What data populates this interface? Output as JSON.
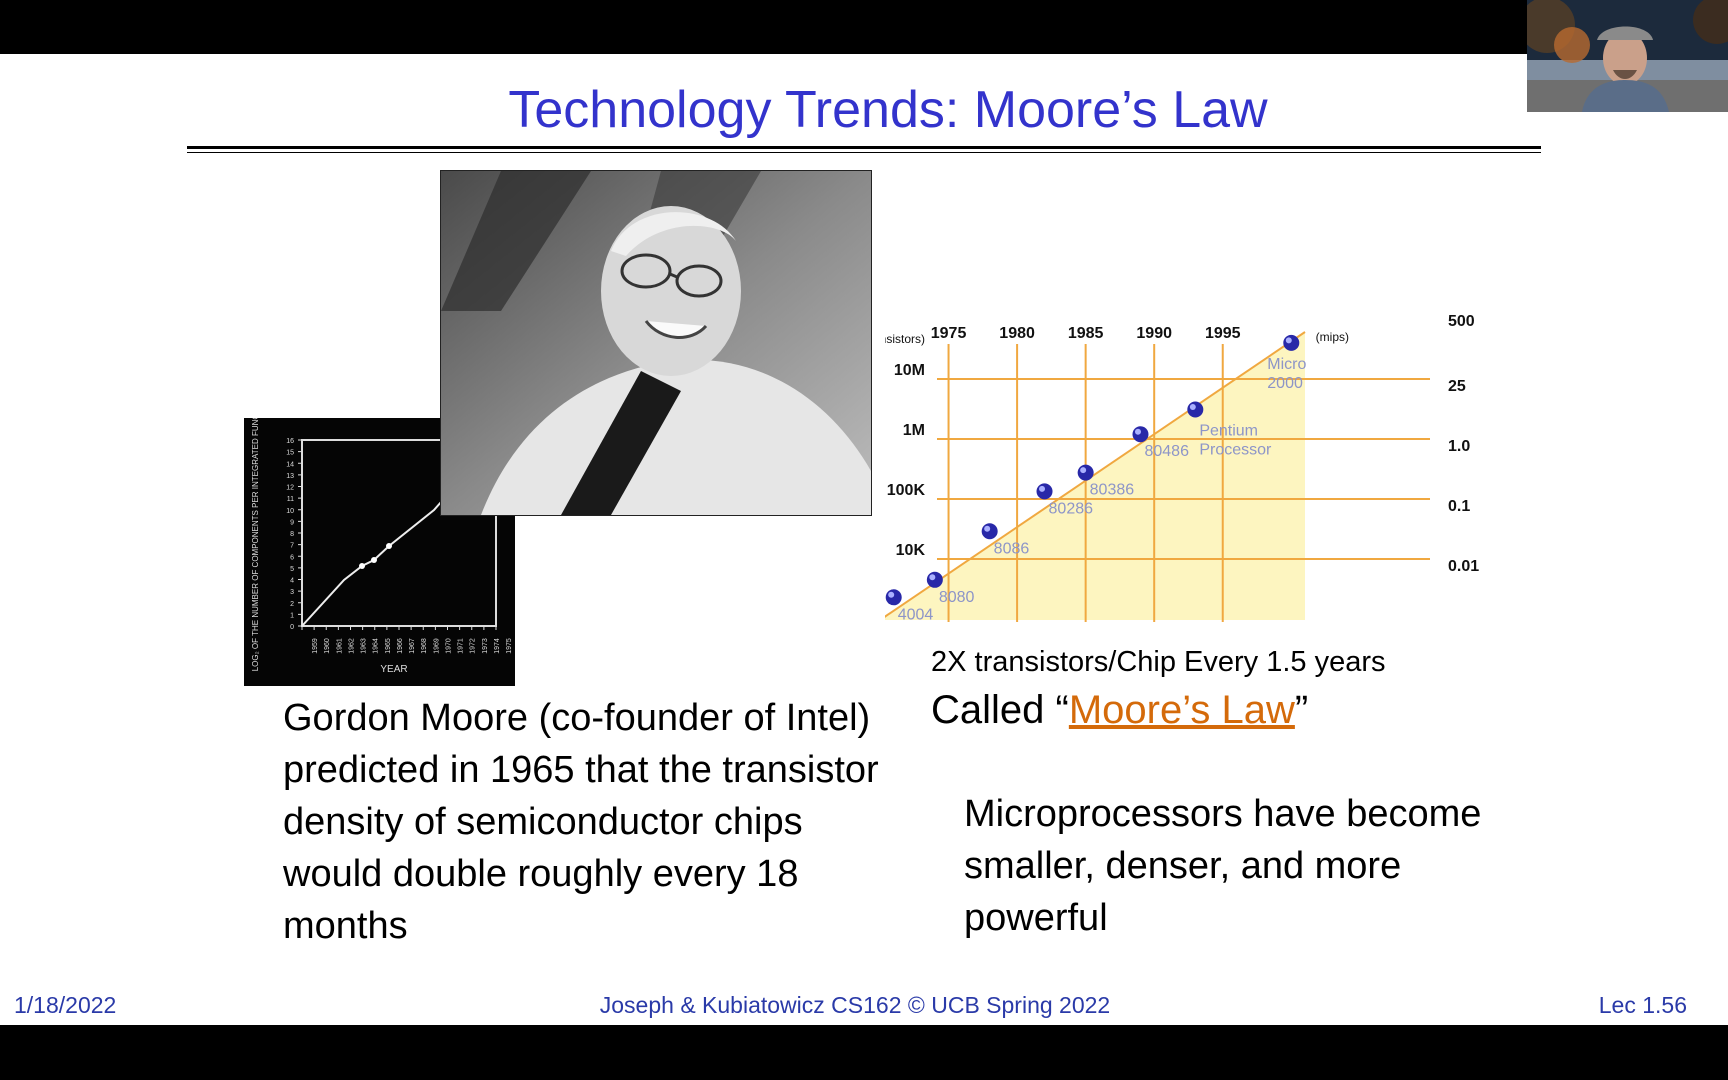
{
  "slide": {
    "title": "Technology Trends: Moore’s Law",
    "left_text": "Gordon Moore (co-founder of Intel) predicted in 1965 that the transistor density of semiconductor chips would double roughly every 18 months",
    "caption_small": "2X transistors/Chip Every 1.5 years",
    "caption_large_prefix": "Called “",
    "caption_large_link": "Moore’s Law",
    "caption_large_suffix": "”",
    "right_text": "Microprocessors have become smaller, denser, and more powerful"
  },
  "footer": {
    "date": "1/18/2022",
    "center": "Joseph & Kubiatowicz CS162 © UCB Spring 2022",
    "lecture": "Lec 1.56"
  },
  "moore_graph": {
    "ylabel": "LOG₂ OF THE NUMBER OF COMPONENTS PER INTEGRATED FUNCTION",
    "xlabel": "YEAR",
    "x_ticks": [
      "1959",
      "1960",
      "1961",
      "1962",
      "1963",
      "1964",
      "1965",
      "1966",
      "1967",
      "1968",
      "1969",
      "1970",
      "1971",
      "1972",
      "1973",
      "1974",
      "1975"
    ],
    "y_ticks": [
      "0",
      "1",
      "2",
      "3",
      "4",
      "5",
      "6",
      "7",
      "8",
      "9",
      "10",
      "11",
      "12",
      "13",
      "14",
      "15",
      "16"
    ]
  },
  "chart_data": {
    "type": "scatter",
    "title": "",
    "x_ticks": [
      "1975",
      "1980",
      "1985",
      "1990",
      "1995"
    ],
    "y_ticks_left": [
      "10M",
      "1M",
      "100K",
      "10K"
    ],
    "y_left_unit": "(transistors)",
    "y_ticks_right": [
      "500",
      "25",
      "1.0",
      "0.1",
      "0.01"
    ],
    "y_right_unit": "(mips)",
    "xlim": [
      1970,
      2001
    ],
    "points": [
      {
        "label": "4004",
        "year": 1971,
        "transistors": 2300
      },
      {
        "label": "8080",
        "year": 1974,
        "transistors": 4500
      },
      {
        "label": "8086",
        "year": 1978,
        "transistors": 29000
      },
      {
        "label": "80286",
        "year": 1982,
        "transistors": 134000
      },
      {
        "label": "80386",
        "year": 1985,
        "transistors": 275000
      },
      {
        "label": "80486",
        "year": 1989,
        "transistors": 1200000
      },
      {
        "label": "Pentium Processor",
        "year": 1993,
        "transistors": 3100000
      },
      {
        "label": "Micro 2000",
        "year": 2000,
        "transistors": 40000000
      }
    ],
    "colors": {
      "grid": "#f0a840",
      "fill": "#fdf5c0",
      "point": "#2828a8",
      "label": "#8d95c8"
    }
  }
}
